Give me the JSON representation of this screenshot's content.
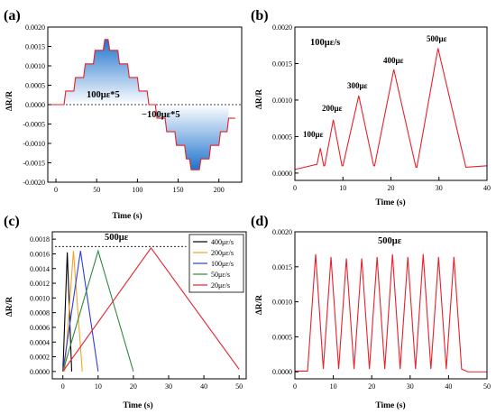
{
  "colors": {
    "red": "#e8202a",
    "orange": "#f0a428",
    "blue": "#2f3bdc",
    "green": "#2e8b3e",
    "black": "#000000",
    "fill_top": "#1e73cc",
    "fill_bottom": "#ffffff"
  },
  "chart_data": [
    {
      "panel": "(a)",
      "type": "line",
      "xlabel": "Time (s)",
      "ylabel": "ΔR/R",
      "xlim": [
        -10,
        228
      ],
      "ylim": [
        -0.002,
        0.002
      ],
      "xticks": [
        0,
        50,
        100,
        150,
        200
      ],
      "yticks": [
        -0.002,
        -0.0015,
        -0.001,
        -0.0005,
        0.0,
        0.0005,
        0.001,
        0.0015,
        0.002
      ],
      "ytick_labels": [
        "-0.0020",
        "-0.0015",
        "-0.0010",
        "-0.0005",
        "0.0000",
        "0.0005",
        "0.0010",
        "0.0015",
        "0.0020"
      ],
      "annotations": [
        "100με*5",
        "−100με*5"
      ],
      "fill": "blue gradient between curve and zero line",
      "series": [
        {
          "color": "#e8202a",
          "x": [
            -10,
            10,
            12,
            22,
            24,
            34,
            36,
            46,
            48,
            58,
            60,
            64,
            66,
            76,
            78,
            88,
            90,
            100,
            102,
            112,
            114,
            122,
            124,
            134,
            136,
            146,
            148,
            158,
            160,
            164,
            166,
            176,
            178,
            188,
            190,
            200,
            202,
            210,
            212,
            220
          ],
          "y": [
            0.0,
            0.0,
            0.00035,
            0.00035,
            0.0007,
            0.0007,
            0.00105,
            0.00105,
            0.0014,
            0.0014,
            0.00168,
            0.00168,
            0.0014,
            0.0014,
            0.00105,
            0.00105,
            0.0007,
            0.0007,
            0.00035,
            0.00035,
            0.0,
            0.0,
            -0.00035,
            -0.00035,
            -0.0007,
            -0.0007,
            -0.00105,
            -0.00105,
            -0.0014,
            -0.0014,
            -0.00168,
            -0.00168,
            -0.0014,
            -0.0014,
            -0.00105,
            -0.00105,
            -0.0007,
            -0.0007,
            -0.00035,
            -0.00035
          ]
        }
      ]
    },
    {
      "panel": "(b)",
      "type": "line",
      "xlabel": "Time (s)",
      "ylabel": "ΔR/R",
      "xlim": [
        0,
        40
      ],
      "ylim": [
        -0.0001,
        0.002
      ],
      "xticks": [
        0,
        10,
        20,
        30,
        40
      ],
      "yticks": [
        0.0,
        0.0005,
        0.001,
        0.0015,
        0.002
      ],
      "ytick_labels": [
        "0.0000",
        "0.0005",
        "0.0010",
        "0.0015",
        "0.0020"
      ],
      "annotations": [
        "100με/s",
        "100με",
        "200με",
        "300με",
        "400με",
        "500με"
      ],
      "series": [
        {
          "color": "#e8202a",
          "x": [
            0,
            4.6,
            5.3,
            6.0,
            6.2,
            8.0,
            9.8,
            10.0,
            13.3,
            16.4,
            16.6,
            20.6,
            25.2,
            25.4,
            29.8,
            35.6,
            40
          ],
          "y": [
            5e-05,
            0.00012,
            0.00034,
            0.0001,
            0.0001,
            0.00073,
            0.0001,
            0.0001,
            0.00106,
            0.0001,
            0.0001,
            0.00142,
            8e-05,
            8e-05,
            0.00171,
            8e-05,
            0.0001
          ]
        }
      ]
    },
    {
      "panel": "(c)",
      "type": "line",
      "xlabel": "Time (s)",
      "ylabel": "ΔR/R",
      "xlim": [
        -3,
        52
      ],
      "ylim": [
        -0.0001,
        0.0019
      ],
      "xticks": [
        0,
        10,
        20,
        30,
        40,
        50
      ],
      "yticks": [
        0.0,
        0.0002,
        0.0004,
        0.0006,
        0.0008,
        0.001,
        0.0012,
        0.0014,
        0.0016,
        0.0018
      ],
      "ytick_labels": [
        "0.0000",
        "0.0002",
        "0.0004",
        "0.0006",
        "0.0008",
        "0.0010",
        "0.0012",
        "0.0014",
        "0.0016",
        "0.0018"
      ],
      "annotations": [
        "500με"
      ],
      "reference_level": 0.0017,
      "legend_position": "top-right",
      "series": [
        {
          "name": "400με/s",
          "color": "#000000",
          "x": [
            0,
            1.25,
            2.5
          ],
          "y": [
            0.0,
            0.00162,
            0.0
          ]
        },
        {
          "name": "200με/s",
          "color": "#f0a428",
          "x": [
            0.5,
            3.0,
            5.5
          ],
          "y": [
            0.0,
            0.00164,
            0.0
          ]
        },
        {
          "name": "100με/s",
          "color": "#2f3bdc",
          "x": [
            0,
            5.0,
            10.0
          ],
          "y": [
            0.0,
            0.00164,
            0.0
          ]
        },
        {
          "name": "50με/s",
          "color": "#2e8b3e",
          "x": [
            0,
            10.0,
            20.0
          ],
          "y": [
            0.0,
            0.00164,
            0.0
          ]
        },
        {
          "name": "20με/s",
          "color": "#e8202a",
          "x": [
            0,
            25.0,
            50.0
          ],
          "y": [
            0.0,
            0.00168,
            3e-05
          ]
        }
      ]
    },
    {
      "panel": "(d)",
      "type": "line",
      "xlabel": "Time (s)",
      "ylabel": "ΔR/R",
      "xlim": [
        0,
        50
      ],
      "ylim": [
        -0.0001,
        0.002
      ],
      "xticks": [
        0,
        10,
        20,
        30,
        40,
        50
      ],
      "yticks": [
        0.0,
        0.0005,
        0.001,
        0.0015,
        0.002
      ],
      "ytick_labels": [
        "0.0000",
        "0.0005",
        "0.0010",
        "0.0015",
        "0.0020"
      ],
      "annotations": [
        "500με"
      ],
      "series": [
        {
          "color": "#e8202a",
          "x": [
            0,
            3.3,
            5.4,
            7.4,
            9.4,
            11.4,
            13.4,
            15.4,
            17.4,
            19.4,
            21.4,
            23.4,
            25.4,
            27.4,
            29.4,
            31.4,
            33.4,
            35.4,
            37.4,
            39.4,
            41.4,
            43.4,
            45.0,
            50
          ],
          "y": [
            1e-05,
            1e-05,
            0.00168,
            4e-05,
            0.00164,
            4e-05,
            0.00162,
            4e-05,
            0.00162,
            4e-05,
            0.00164,
            4e-05,
            0.00168,
            4e-05,
            0.00164,
            4e-05,
            0.00168,
            4e-05,
            0.00164,
            4e-05,
            0.00164,
            4e-05,
            0.0,
            0.0
          ]
        }
      ]
    }
  ]
}
